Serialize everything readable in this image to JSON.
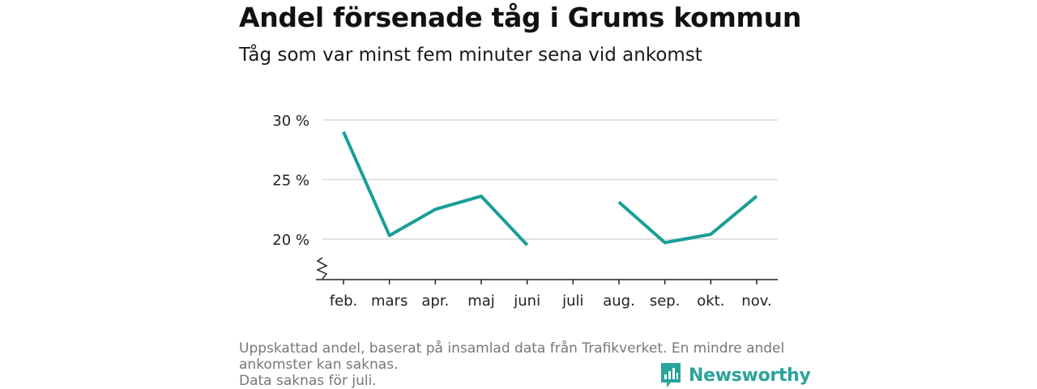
{
  "title": "Andel försenade tåg i Grums kommun",
  "subtitle": "Tåg som var minst fem minuter sena vid ankomst",
  "footnote": {
    "line1": "Uppskattad andel, baserat på insamlad data från Trafikverket. En mindre andel",
    "line2": "ankomster kan saknas.",
    "line3": "Data saknas för juli."
  },
  "brand": {
    "name": "Newsworthy",
    "color": "#2aa39a"
  },
  "chart_data": {
    "type": "line",
    "title": "Andel försenade tåg i Grums kommun",
    "subtitle": "Tåg som var minst fem minuter sena vid ankomst",
    "categories": [
      "feb.",
      "mars",
      "apr.",
      "maj",
      "juni",
      "juli",
      "aug.",
      "sep.",
      "okt.",
      "nov."
    ],
    "series": [
      {
        "values": [
          29.0,
          20.3,
          22.5,
          23.6,
          19.5,
          null,
          23.1,
          19.7,
          20.4,
          23.6
        ],
        "color": "#1a9e96"
      }
    ],
    "y_ticks": [
      20,
      25,
      30
    ],
    "y_tick_labels": [
      "20 %",
      "25 %",
      "30 %"
    ],
    "y_axis_break": true,
    "grid": true,
    "xlabel": "",
    "ylabel": ""
  }
}
